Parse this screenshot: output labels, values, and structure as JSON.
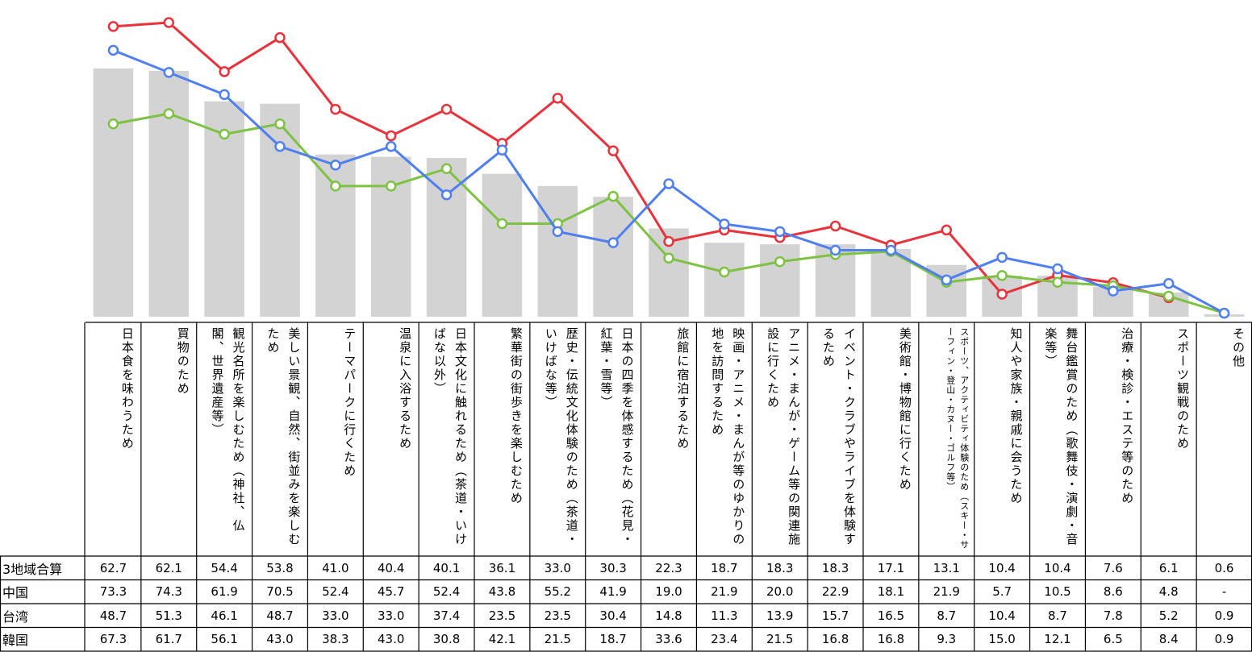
{
  "chart_data": {
    "type": "combo",
    "categories": [
      "日本食を味わうため",
      "買物のため",
      "観光名所を楽しむため（神社、仏閣、世界遺産等）",
      "美しい景観、自然、街並みを楽しむため",
      "テーマパークに行くため",
      "温泉に入浴するため",
      "日本文化に触れるため（茶道・いけばな以外）",
      "繁華街の街歩きを楽しむため",
      "歴史・伝統文化体験のため（茶道・いけばな等）",
      "日本の四季を体感するため（花見・紅葉・雪等）",
      "旅館に宿泊するため",
      "映画・アニメ・まんが等のゆかりの地を訪問するため",
      "アニメ・まんが・ゲーム等の関連施設に行くため",
      "イベント・クラブやライブを体験するため",
      "美術館・博物館に行くため",
      "スポーツ、アクティビティ体験のため（スキー・サーフィン・登山・カヌー・ゴルフ等）",
      "知人や家族・親戚に会うため",
      "舞台鑑賞のため（歌舞伎・演劇・音楽等）",
      "治療・検診・エステ等のため",
      "スポーツ観戦のため",
      "その他"
    ],
    "ylim": [
      0,
      80
    ],
    "series": [
      {
        "name": "3地域合算",
        "type": "bar",
        "color": "#d3d3d3",
        "values": [
          62.7,
          62.1,
          54.4,
          53.8,
          41.0,
          40.4,
          40.1,
          36.1,
          33.0,
          30.3,
          22.3,
          18.7,
          18.3,
          18.3,
          17.1,
          13.1,
          10.4,
          10.4,
          7.6,
          6.1,
          0.6
        ],
        "value_labels": [
          "62.7",
          "62.1",
          "54.4",
          "53.8",
          "41.0",
          "40.4",
          "40.1",
          "36.1",
          "33.0",
          "30.3",
          "22.3",
          "18.7",
          "18.3",
          "18.3",
          "17.1",
          "13.1",
          "10.4",
          "10.4",
          "7.6",
          "6.1",
          "0.6"
        ]
      },
      {
        "name": "中国",
        "type": "line",
        "color": "#e8323c",
        "values": [
          73.3,
          74.3,
          61.9,
          70.5,
          52.4,
          45.7,
          52.4,
          43.8,
          55.2,
          41.9,
          19.0,
          21.9,
          20.0,
          22.9,
          18.1,
          21.9,
          5.7,
          10.5,
          8.6,
          4.8,
          null
        ],
        "value_labels": [
          "73.3",
          "74.3",
          "61.9",
          "70.5",
          "52.4",
          "45.7",
          "52.4",
          "43.8",
          "55.2",
          "41.9",
          "19.0",
          "21.9",
          "20.0",
          "22.9",
          "18.1",
          "21.9",
          "5.7",
          "10.5",
          "8.6",
          "4.8",
          "-"
        ]
      },
      {
        "name": "台湾",
        "type": "line",
        "color": "#7dc242",
        "values": [
          48.7,
          51.3,
          46.1,
          48.7,
          33.0,
          33.0,
          37.4,
          23.5,
          23.5,
          30.4,
          14.8,
          11.3,
          13.9,
          15.7,
          16.5,
          8.7,
          10.4,
          8.7,
          7.8,
          5.2,
          0.9
        ],
        "value_labels": [
          "48.7",
          "51.3",
          "46.1",
          "48.7",
          "33.0",
          "33.0",
          "37.4",
          "23.5",
          "23.5",
          "30.4",
          "14.8",
          "11.3",
          "13.9",
          "15.7",
          "16.5",
          "8.7",
          "10.4",
          "8.7",
          "7.8",
          "5.2",
          "0.9"
        ]
      },
      {
        "name": "韓国",
        "type": "line",
        "color": "#4f7ff0",
        "values": [
          67.3,
          61.7,
          56.1,
          43.0,
          38.3,
          43.0,
          30.8,
          42.1,
          21.5,
          18.7,
          33.6,
          23.4,
          21.5,
          16.8,
          16.8,
          9.3,
          15.0,
          12.1,
          6.5,
          8.4,
          0.9
        ],
        "value_labels": [
          "67.3",
          "61.7",
          "56.1",
          "43.0",
          "38.3",
          "43.0",
          "30.8",
          "42.1",
          "21.5",
          "18.7",
          "33.6",
          "23.4",
          "21.5",
          "16.8",
          "16.8",
          "9.3",
          "15.0",
          "12.1",
          "6.5",
          "8.4",
          "0.9"
        ]
      }
    ]
  }
}
